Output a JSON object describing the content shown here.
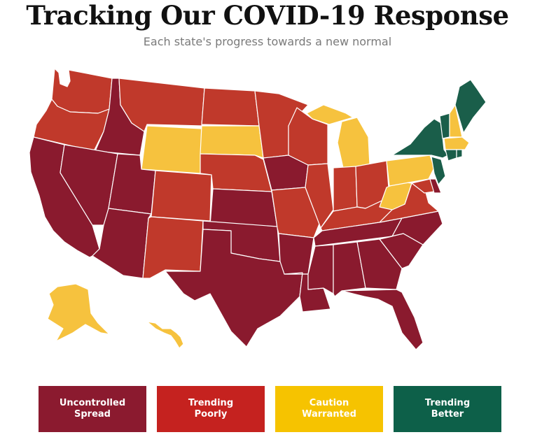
{
  "header": {
    "title": "Tracking Our COVID-19 Response",
    "subtitle": "Each state's progress towards a new normal"
  },
  "colors": {
    "uncontrolled_spread": "#8a1a2e",
    "trending_poorly": "#c0392b",
    "caution_warranted": "#f6c23e",
    "trending_better": "#1a5e4a"
  },
  "legend": [
    {
      "key": "uncontrolled_spread",
      "label": "Uncontrolled\nSpread",
      "color": "#8b1a2f"
    },
    {
      "key": "trending_poorly",
      "label": "Trending\nPoorly",
      "color": "#c5221f"
    },
    {
      "key": "caution_warranted",
      "label": "Caution\nWarranted",
      "color": "#f6c300"
    },
    {
      "key": "trending_better",
      "label": "Trending\nBetter",
      "color": "#0d6049"
    }
  ],
  "states": {
    "uncontrolled_spread": [
      "Idaho",
      "Nevada",
      "California",
      "Utah",
      "Arizona",
      "Kansas",
      "Iowa",
      "Oklahoma",
      "Texas",
      "Arkansas",
      "Louisiana",
      "Mississippi",
      "Alabama",
      "Georgia",
      "Florida",
      "Tennessee",
      "South Carolina",
      "North Carolina",
      "Delaware"
    ],
    "trending_poorly": [
      "Washington",
      "Oregon",
      "Montana",
      "North Dakota",
      "Minnesota",
      "Wisconsin",
      "Nebraska",
      "Colorado",
      "New Mexico",
      "Missouri",
      "Illinois",
      "Indiana",
      "Ohio",
      "Kentucky",
      "Virginia",
      "Maryland"
    ],
    "caution_warranted": [
      "Wyoming",
      "South Dakota",
      "Michigan",
      "Pennsylvania",
      "West Virginia",
      "New Hampshire",
      "Massachusetts",
      "Alaska",
      "Hawaii"
    ],
    "trending_better": [
      "Maine",
      "Vermont",
      "New York",
      "Connecticut",
      "Rhode Island",
      "New Jersey"
    ]
  }
}
